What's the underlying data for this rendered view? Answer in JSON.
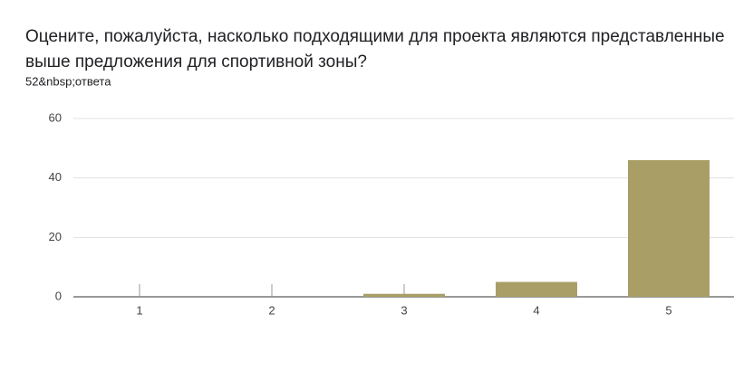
{
  "chart_data": {
    "type": "bar",
    "title": [
      "Оцените, пожалуйста, насколько подходящими для проекта являются представленные",
      "выше предложения для спортивной зоны?"
    ],
    "subtitle": "52&nbsp;ответа",
    "categories": [
      "1",
      "2",
      "3",
      "4",
      "5"
    ],
    "values": [
      0,
      0,
      1,
      5,
      46
    ],
    "color": "#a99f66",
    "ylim": [
      0,
      60
    ],
    "yticks": [
      0,
      20,
      40,
      60
    ],
    "grid": true
  }
}
